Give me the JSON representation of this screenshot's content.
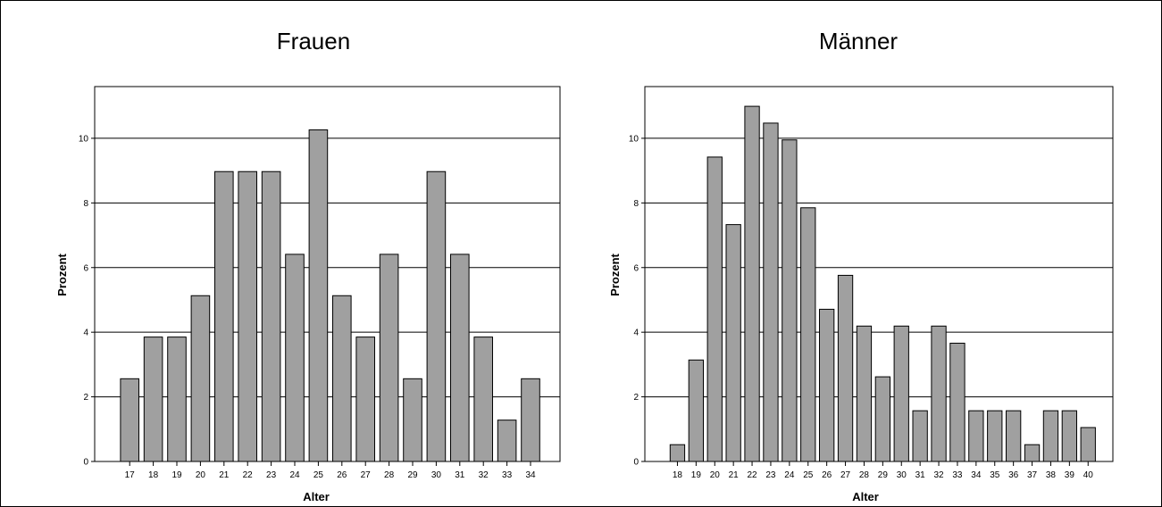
{
  "chart_data": [
    {
      "type": "bar",
      "title": "Frauen",
      "xlabel": "Alter",
      "ylabel": "Prozent",
      "categories": [
        "17",
        "18",
        "19",
        "20",
        "21",
        "22",
        "23",
        "24",
        "25",
        "26",
        "27",
        "28",
        "29",
        "30",
        "31",
        "32",
        "33",
        "34"
      ],
      "values": [
        2.56,
        3.85,
        3.85,
        5.13,
        8.97,
        8.97,
        8.97,
        6.41,
        10.26,
        5.13,
        3.85,
        6.41,
        2.56,
        8.97,
        6.41,
        3.85,
        1.28,
        2.56
      ],
      "ylim": [
        0,
        11.6
      ],
      "yticks": [
        0,
        2,
        4,
        6,
        8,
        10
      ],
      "grid": true,
      "bar_color": "#a0a0a0"
    },
    {
      "type": "bar",
      "title": "Männer",
      "xlabel": "Alter",
      "ylabel": "Prozent",
      "categories": [
        "18",
        "19",
        "20",
        "21",
        "22",
        "23",
        "24",
        "25",
        "26",
        "27",
        "28",
        "29",
        "30",
        "31",
        "32",
        "33",
        "34",
        "35",
        "36",
        "37",
        "38",
        "39",
        "40"
      ],
      "values": [
        0.52,
        3.14,
        9.42,
        7.33,
        10.99,
        10.47,
        9.95,
        7.85,
        4.71,
        5.76,
        4.19,
        2.62,
        4.19,
        1.57,
        4.19,
        3.66,
        1.57,
        1.57,
        1.57,
        0.52,
        1.57,
        1.57,
        1.05
      ],
      "ylim": [
        0,
        11.6
      ],
      "yticks": [
        0,
        2,
        4,
        6,
        8,
        10
      ],
      "grid": true,
      "bar_color": "#a0a0a0"
    }
  ]
}
